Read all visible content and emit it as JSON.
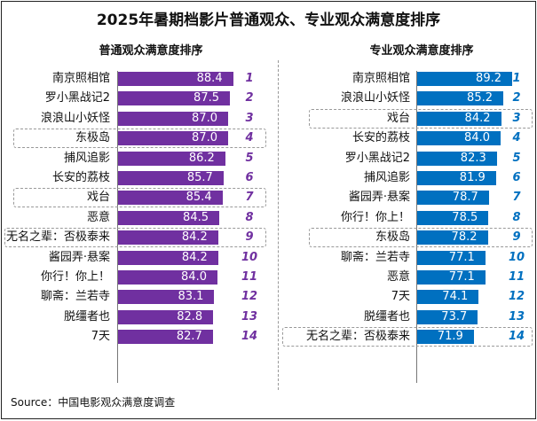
{
  "title": "2025年暑期档影片普通观众、专业观众满意度排序",
  "source": "Source：中国电影观众满意度调查",
  "chart_data": [
    {
      "type": "bar",
      "orientation": "horizontal",
      "title": "普通观众满意度排序",
      "color": "#7030A0",
      "categories": [
        "南京照相馆",
        "罗小黑战记2",
        "浪浪山小妖怪",
        "东极岛",
        "捕风追影",
        "长安的荔枝",
        "戏台",
        "恶意",
        "无名之辈：否极泰来",
        "酱园弄·悬案",
        "你行！你上！",
        "聊斋：兰若寺",
        "脱缰者也",
        "7天"
      ],
      "values": [
        88.4,
        87.5,
        87.0,
        87.0,
        86.2,
        85.7,
        85.4,
        84.5,
        84.2,
        84.2,
        84.0,
        83.1,
        82.8,
        82.7
      ],
      "ranks": [
        "1",
        "2",
        "3",
        "4",
        "5",
        "6",
        "7",
        "8",
        "9",
        "10",
        "11",
        "12",
        "13",
        "14"
      ],
      "value_labels": [
        "88.4",
        "87.5",
        "87.0",
        "87.0",
        "86.2",
        "85.7",
        "85.4",
        "84.5",
        "84.2",
        "84.2",
        "84.0",
        "83.1",
        "82.8",
        "82.7"
      ],
      "highlighted": [
        "东极岛",
        "戏台",
        "无名之辈：否极泰来"
      ]
    },
    {
      "type": "bar",
      "orientation": "horizontal",
      "title": "专业观众满意度排序",
      "color": "#0070C0",
      "categories": [
        "南京照相馆",
        "浪浪山小妖怪",
        "戏台",
        "长安的荔枝",
        "罗小黑战记2",
        "捕风追影",
        "酱园弄·悬案",
        "你行！你上！",
        "东极岛",
        "聊斋：兰若寺",
        "恶意",
        "7天",
        "脱缰者也",
        "无名之辈：否极泰来"
      ],
      "values": [
        89.2,
        85.2,
        84.2,
        84.0,
        82.3,
        81.9,
        78.7,
        78.5,
        78.2,
        77.1,
        77.1,
        74.1,
        73.7,
        71.9
      ],
      "ranks": [
        "1",
        "2",
        "3",
        "4",
        "5",
        "6",
        "7",
        "8",
        "9",
        "10",
        "11",
        "12",
        "13",
        "14"
      ],
      "value_labels": [
        "89.2",
        "85.2",
        "84.2",
        "84.0",
        "82.3",
        "81.9",
        "78.7",
        "78.5",
        "78.2",
        "77.1",
        "77.1",
        "74.1",
        "73.7",
        "71.9"
      ],
      "highlighted": [
        "戏台",
        "东极岛",
        "无名之辈：否极泰来"
      ]
    }
  ]
}
